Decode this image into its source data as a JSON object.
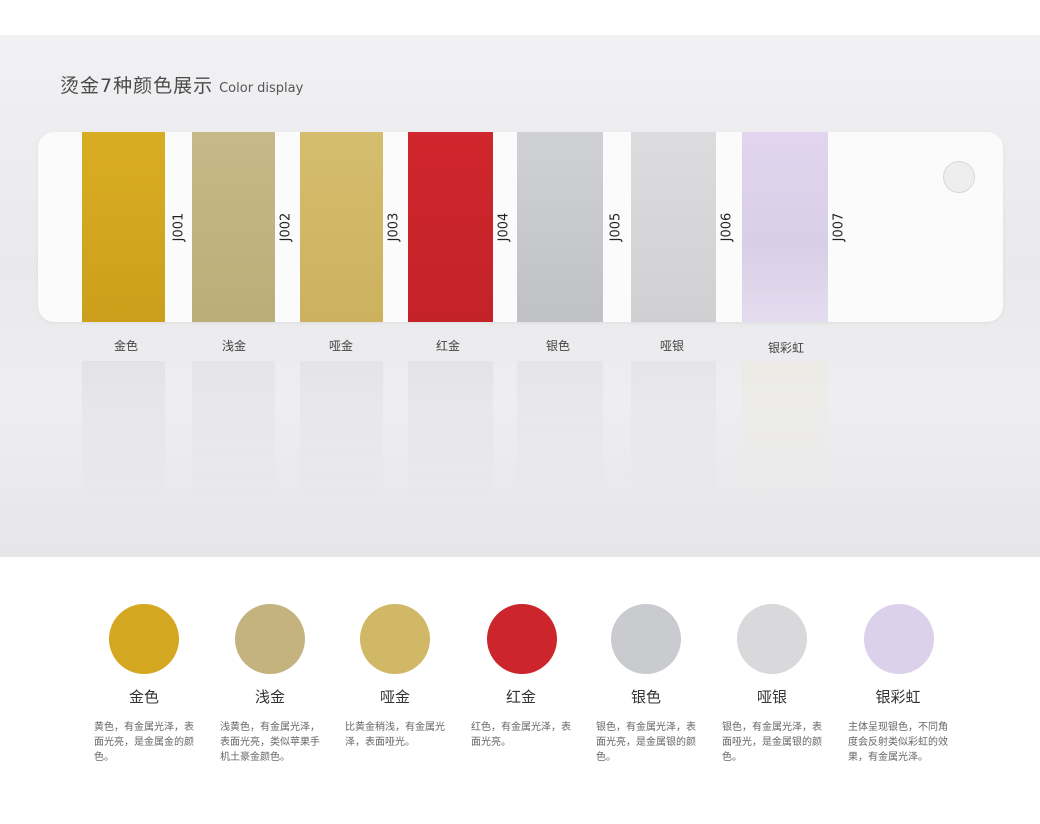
{
  "header": {
    "title": "烫金7种颜色展示",
    "subtitle": "Color display"
  },
  "swatches": [
    {
      "code": "J001",
      "label": "金色",
      "color": "#d3a71f"
    },
    {
      "code": "J002",
      "label": "浅金",
      "color": "#c2b380"
    },
    {
      "code": "J003",
      "label": "哑金",
      "color": "#d1b866"
    },
    {
      "code": "J004",
      "label": "红金",
      "color": "#cc252c"
    },
    {
      "code": "J005",
      "label": "银色",
      "color": "#c6c8cb"
    },
    {
      "code": "J006",
      "label": "哑银",
      "color": "#d6d6d8"
    },
    {
      "code": "J007",
      "label": "银彩虹",
      "color": "#dcd1ea"
    }
  ],
  "legend": [
    {
      "name": "金色",
      "desc": "黄色，有金属光泽，表面光亮，是金属金的颜色。",
      "color": "#d3a71f"
    },
    {
      "name": "浅金",
      "desc": "浅黄色，有金属光泽，表面光亮，类似苹果手机土豪金颜色。",
      "color": "#c4b27f"
    },
    {
      "name": "哑金",
      "desc": "比黄金稍浅，有金属光泽，表面哑光。",
      "color": "#d1b866"
    },
    {
      "name": "红金",
      "desc": "红色，有金属光泽，表面光亮。",
      "color": "#cc262c"
    },
    {
      "name": "银色",
      "desc": "银色，有金属光泽，表面光亮，是金属银的颜色。",
      "color": "#c9cbce"
    },
    {
      "name": "哑银",
      "desc": "银色，有金属光泽，表面哑光，是金属银的颜色。",
      "color": "#d9d9db"
    },
    {
      "name": "银彩虹",
      "desc": "主体呈现银色，不同角度会反射类似彩虹的效果，有金属光泽。",
      "color": "#dcd1ea"
    }
  ]
}
